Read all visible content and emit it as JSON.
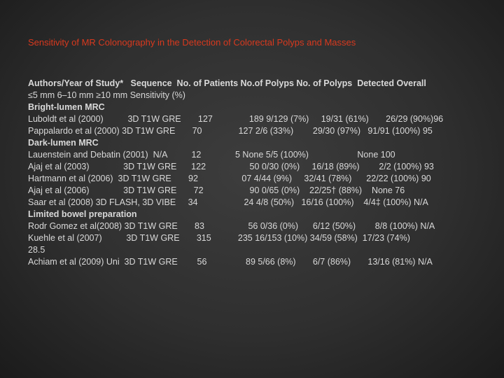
{
  "slide": {
    "title": "Sensitivity of MR Colonography in the Detection of Colorectal Polyps and Masses",
    "lines": [
      {
        "text": "Authors/Year of Study*   Sequence  No. of Patients No.of Polyps No. of Polyps  Detected Overall",
        "bold": true
      },
      {
        "text": "≤5 mm 6–10 mm ≥10 mm Sensitivity (%)",
        "bold": false
      },
      {
        "text": "Bright-lumen MRC",
        "bold": true
      },
      {
        "text": "Luboldt et al (2000)          3D T1W GRE       127               189 9/129 (7%)     19/31 (61%)       26/29 (90%)96",
        "bold": false
      },
      {
        "text": "Pappalardo et al (2000) 3D T1W GRE       70               127 2/6 (33%)        29/30 (97%)   91/91 (100%) 95",
        "bold": false
      },
      {
        "text": "Dark-lumen MRC",
        "bold": true
      },
      {
        "text": "Lauenstein and Debatin (2001)  N/A          12              5 None 5/5 (100%)                    None 100",
        "bold": false
      },
      {
        "text": "Ajaj et al (2003)              3D T1W GRE      122                  50 0/30 (0%)     16/18 (89%)        2/2 (100%) 93",
        "bold": false
      },
      {
        "text": "Hartmann et al (2006)  3D T1W GRE       92                  07 4/44 (9%)     32/41 (78%)      22/22 (100%) 90",
        "bold": false
      },
      {
        "text": "Ajaj et al (2006)              3D T1W GRE       72                   90 0/65 (0%)    22/25† (88%)    None 76",
        "bold": false
      },
      {
        "text": "Saar et al (2008) 3D FLASH, 3D VIBE     34                   24 4/8 (50%)   16/16 (100%)    4/4‡ (100%) N/A",
        "bold": false
      },
      {
        "text": "Limited bowel preparation",
        "bold": true
      },
      {
        "text": "Rodr Gomez et al(2008) 3D T1W GRE       83                  56 0/36 (0%)      6/12 (50%)        8/8 (100%) N/A",
        "bold": false
      },
      {
        "text": "Kuehle et al (2007)          3D T1W GRE       315           235 16/153 (10%) 34/59 (58%)  17/23 (74%)",
        "bold": false
      },
      {
        "text": "28.5",
        "bold": false
      },
      {
        "text": "Achiam et al (2009) Uni  3D T1W GRE        56                89 5/66 (8%)       6/7 (86%)       13/16 (81%) N/A",
        "bold": false
      }
    ]
  }
}
